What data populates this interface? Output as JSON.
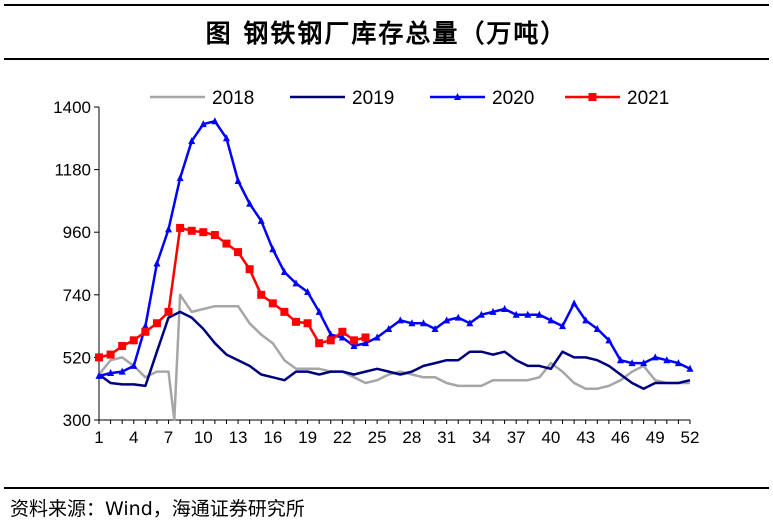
{
  "title": "图  钢铁钢厂库存总量（万吨）",
  "source": "资料来源：Wind，海通证券研究所",
  "chart_data": {
    "type": "line",
    "ylim": [
      300,
      1400
    ],
    "yticks": [
      300,
      520,
      740,
      960,
      1180,
      1400
    ],
    "xlim": [
      1,
      52
    ],
    "xticks": [
      1,
      4,
      7,
      10,
      13,
      16,
      19,
      22,
      25,
      28,
      31,
      34,
      37,
      40,
      43,
      46,
      49,
      52
    ],
    "legend_position": "top",
    "series": [
      {
        "name": "2018",
        "color": "#a6a6a6",
        "marker": "none",
        "x": [
          1,
          2,
          3,
          4,
          5,
          6,
          7,
          7.5,
          8,
          9,
          10,
          11,
          12,
          13,
          14,
          15,
          16,
          17,
          18,
          19,
          20,
          21,
          22,
          23,
          24,
          25,
          26,
          27,
          28,
          29,
          30,
          31,
          32,
          33,
          34,
          35,
          36,
          37,
          38,
          39,
          40,
          41,
          42,
          43,
          44,
          45,
          46,
          47,
          48,
          49,
          50,
          51,
          52
        ],
        "values": [
          460,
          510,
          520,
          490,
          450,
          470,
          470,
          300,
          740,
          680,
          690,
          700,
          700,
          700,
          640,
          600,
          570,
          510,
          480,
          480,
          480,
          470,
          470,
          450,
          430,
          440,
          460,
          470,
          460,
          450,
          450,
          430,
          420,
          420,
          420,
          440,
          440,
          440,
          440,
          450,
          500,
          470,
          430,
          410,
          410,
          420,
          440,
          470,
          490,
          440,
          430,
          430,
          430
        ]
      },
      {
        "name": "2019",
        "color": "#00007e",
        "marker": "none",
        "x": [
          1,
          2,
          3,
          4,
          5,
          6,
          7,
          8,
          9,
          10,
          11,
          12,
          13,
          14,
          15,
          16,
          17,
          18,
          19,
          20,
          21,
          22,
          23,
          24,
          25,
          26,
          27,
          28,
          29,
          30,
          31,
          32,
          33,
          34,
          35,
          36,
          37,
          38,
          39,
          40,
          41,
          42,
          43,
          44,
          45,
          46,
          47,
          48,
          49,
          50,
          51,
          52
        ],
        "values": [
          460,
          430,
          425,
          425,
          420,
          540,
          660,
          680,
          660,
          620,
          570,
          530,
          510,
          490,
          460,
          450,
          440,
          470,
          470,
          460,
          470,
          470,
          460,
          470,
          480,
          470,
          460,
          470,
          490,
          500,
          510,
          510,
          540,
          540,
          530,
          540,
          510,
          490,
          490,
          480,
          540,
          520,
          520,
          510,
          490,
          460,
          430,
          410,
          430,
          430,
          430,
          440
        ]
      },
      {
        "name": "2020",
        "color": "#0000ff",
        "marker": "triangle",
        "x": [
          1,
          2,
          3,
          4,
          5,
          6,
          7,
          8,
          9,
          10,
          11,
          12,
          13,
          14,
          15,
          16,
          17,
          18,
          19,
          20,
          21,
          22,
          23,
          24,
          25,
          26,
          27,
          28,
          29,
          30,
          31,
          32,
          33,
          34,
          35,
          36,
          37,
          38,
          39,
          40,
          41,
          42,
          43,
          44,
          45,
          46,
          47,
          48,
          49,
          50,
          51,
          52
        ],
        "values": [
          455,
          465,
          470,
          490,
          630,
          850,
          970,
          1150,
          1280,
          1340,
          1350,
          1290,
          1140,
          1060,
          1000,
          900,
          820,
          780,
          750,
          680,
          600,
          590,
          560,
          570,
          590,
          620,
          650,
          640,
          640,
          620,
          650,
          660,
          640,
          670,
          680,
          690,
          670,
          670,
          670,
          650,
          630,
          710,
          650,
          620,
          580,
          510,
          500,
          500,
          520,
          510,
          500,
          480
        ]
      },
      {
        "name": "2021",
        "color": "#ff0000",
        "marker": "square",
        "x": [
          1,
          2,
          3,
          4,
          5,
          6,
          7,
          8,
          9,
          10,
          11,
          12,
          13,
          14,
          15,
          16,
          17,
          18,
          19,
          20,
          21,
          22,
          23,
          24
        ],
        "values": [
          520,
          530,
          560,
          580,
          610,
          640,
          680,
          975,
          965,
          960,
          950,
          920,
          890,
          830,
          740,
          710,
          680,
          645,
          640,
          570,
          580,
          610,
          580,
          590
        ]
      }
    ]
  }
}
